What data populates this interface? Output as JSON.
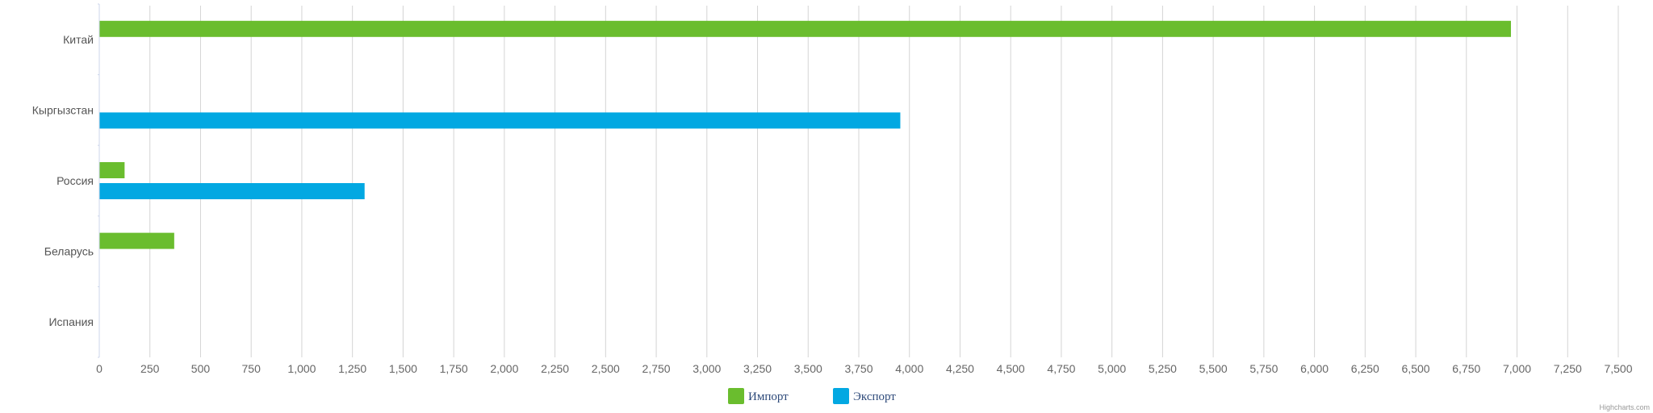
{
  "chart_data": {
    "type": "bar",
    "orientation": "horizontal",
    "categories": [
      "Китай",
      "Кыргызстан",
      "Россия",
      "Беларусь",
      "Испания"
    ],
    "series": [
      {
        "name": "Импорт",
        "color": "#6abd2e",
        "values": [
          6970,
          0,
          125,
          370,
          0
        ]
      },
      {
        "name": "Экспорт",
        "color": "#02a8e2",
        "values": [
          0,
          3955,
          1310,
          0,
          0
        ]
      }
    ],
    "x_ticks": [
      "0",
      "250",
      "500",
      "750",
      "1,000",
      "1,250",
      "1,500",
      "1,750",
      "2,000",
      "2,250",
      "2,500",
      "2,750",
      "3,000",
      "3,250",
      "3,500",
      "3,750",
      "4,000",
      "4,250",
      "4,500",
      "4,750",
      "5,000",
      "5,250",
      "5,500",
      "5,750",
      "6,000",
      "6,250",
      "6,500",
      "6,750",
      "7,000",
      "7,250",
      "7,500"
    ],
    "xlim": [
      0,
      7500
    ],
    "grid": true,
    "legend_position": "bottom-center"
  },
  "legend": {
    "text_color": "#2e4a7a"
  },
  "credits": "Highcharts.com"
}
